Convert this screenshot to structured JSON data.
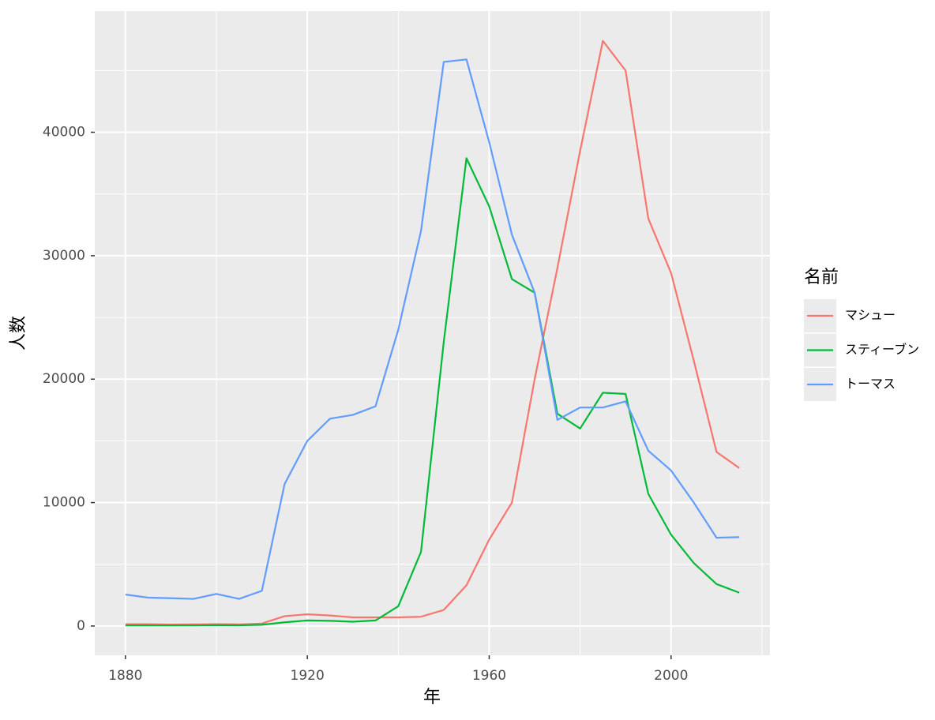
{
  "chart_data": {
    "type": "line",
    "x_label": "年",
    "y_label": "人数",
    "legend_title": "名前",
    "x": [
      1880,
      1885,
      1890,
      1895,
      1900,
      1905,
      1910,
      1915,
      1920,
      1925,
      1930,
      1935,
      1940,
      1945,
      1950,
      1955,
      1960,
      1965,
      1970,
      1975,
      1980,
      1985,
      1990,
      1995,
      2000,
      2005,
      2010,
      2015
    ],
    "series": [
      {
        "name": "マシュー",
        "color": "#F8766D",
        "values": [
          150,
          150,
          120,
          130,
          150,
          130,
          200,
          800,
          950,
          850,
          700,
          700,
          700,
          750,
          1300,
          3300,
          7000,
          10000,
          20000,
          29000,
          38500,
          47400,
          45000,
          33000,
          28600,
          21500,
          14100,
          12800
        ]
      },
      {
        "name": "スティーブン",
        "color": "#00BA38",
        "values": [
          50,
          50,
          50,
          50,
          70,
          60,
          100,
          300,
          450,
          420,
          350,
          450,
          1600,
          6000,
          23000,
          37900,
          34000,
          28100,
          27000,
          17200,
          16000,
          18900,
          18800,
          10700,
          7400,
          5100,
          3400,
          2700
        ]
      },
      {
        "name": "トーマス",
        "color": "#619CFF",
        "values": [
          2550,
          2300,
          2250,
          2200,
          2600,
          2200,
          2850,
          11500,
          15000,
          16800,
          17100,
          17800,
          24000,
          32000,
          45700,
          45900,
          39200,
          31700,
          27000,
          16700,
          17700,
          17700,
          18200,
          14200,
          12600,
          10000,
          7150,
          7200
        ]
      }
    ],
    "xlim": [
      1873.25,
      2021.75
    ],
    "ylim": [
      -2370,
      49820
    ],
    "xticks": [
      1880,
      1920,
      1960,
      2000
    ],
    "yticks": [
      0,
      10000,
      20000,
      30000,
      40000
    ],
    "xminor": [
      1900,
      1940,
      1980,
      2020
    ],
    "yminor": [
      5000,
      15000,
      25000,
      35000,
      45000
    ],
    "grid": true
  }
}
